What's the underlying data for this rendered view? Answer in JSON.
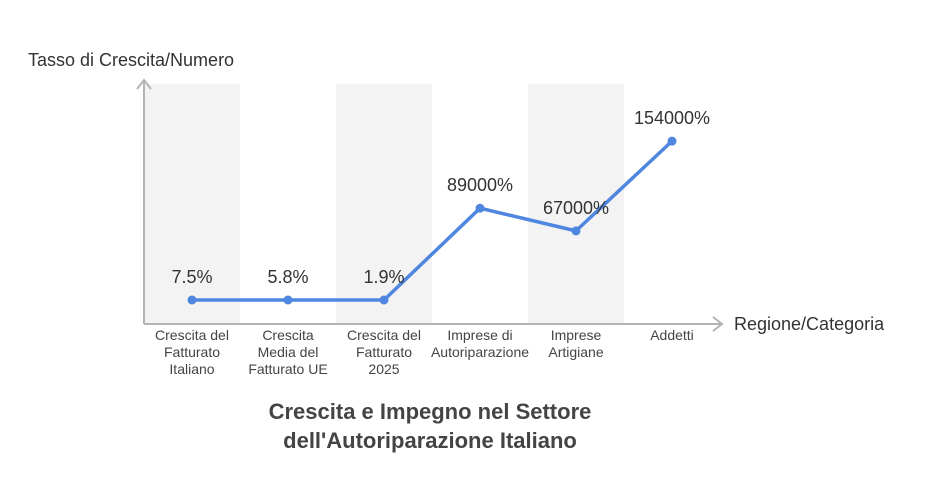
{
  "chart_data": {
    "type": "line",
    "title_lines": [
      "Crescita e Impegno nel Settore",
      "dell'Autoriparazione Italiano"
    ],
    "xlabel": "Regione/Categoria",
    "ylabel": "Tasso di Crescita/Numero",
    "categories": [
      [
        "Crescita del",
        "Fatturato",
        "Italiano"
      ],
      [
        "Crescita",
        "Media del",
        "Fatturato UE"
      ],
      [
        "Crescita del",
        "Fatturato",
        "2025"
      ],
      [
        "Imprese di",
        "Autoriparazione"
      ],
      [
        "Imprese",
        "Artigiane"
      ],
      [
        "Addetti"
      ]
    ],
    "values": [
      7.5,
      5.8,
      1.9,
      89000,
      67000,
      154000
    ],
    "value_labels": [
      "7.5%",
      "5.8%",
      "1.9%",
      "89000%",
      "67000%",
      "154000%"
    ],
    "ylim": [
      0,
      190000
    ],
    "grid": false,
    "colors": {
      "line": "#4e86e0",
      "band": "#f3f3f3",
      "axis": "#b3b3b3"
    }
  }
}
